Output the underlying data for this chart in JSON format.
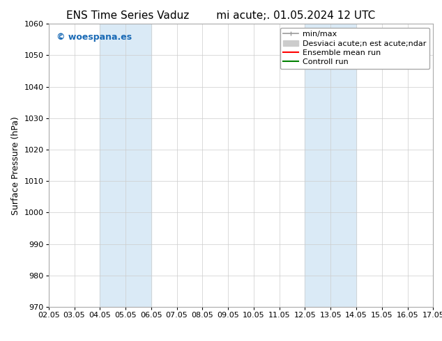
{
  "title_left": "ENS Time Series Vaduz",
  "title_right": "mi acute;. 01.05.2024 12 UTC",
  "ylabel": "Surface Pressure (hPa)",
  "xlabel": "",
  "ylim": [
    970,
    1060
  ],
  "yticks": [
    970,
    980,
    990,
    1000,
    1010,
    1020,
    1030,
    1040,
    1050,
    1060
  ],
  "xtick_labels": [
    "02.05",
    "03.05",
    "04.05",
    "05.05",
    "06.05",
    "07.05",
    "08.05",
    "09.05",
    "10.05",
    "11.05",
    "12.05",
    "13.05",
    "14.05",
    "15.05",
    "16.05",
    "17.05"
  ],
  "num_xticks": 16,
  "shaded_regions": [
    {
      "xstart": 2,
      "xend": 4,
      "color": "#daeaf6"
    },
    {
      "xstart": 10,
      "xend": 12,
      "color": "#daeaf6"
    }
  ],
  "watermark_text": "© woespana.es",
  "watermark_color": "#1a6ab5",
  "background_color": "#ffffff",
  "plot_bg_color": "#ffffff",
  "grid_color": "#cccccc",
  "legend_labels": [
    "min/max",
    "Desviaci acute;n est acute;ndar",
    "Ensemble mean run",
    "Controll run"
  ],
  "legend_colors": [
    "#999999",
    "#cccccc",
    "#ff0000",
    "#008000"
  ],
  "title_fontsize": 11,
  "axis_label_fontsize": 9,
  "tick_fontsize": 8,
  "legend_fontsize": 8,
  "watermark_fontsize": 9
}
